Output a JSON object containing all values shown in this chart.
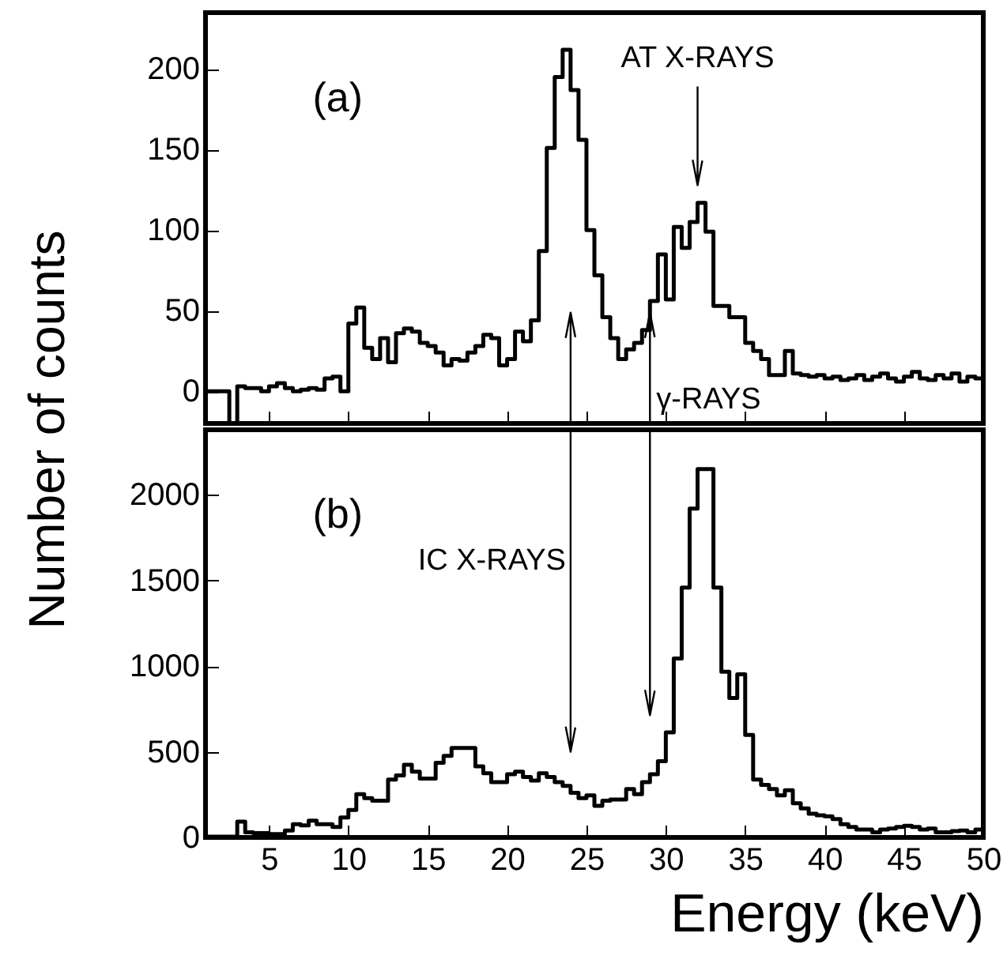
{
  "chart_data": [
    {
      "type": "histogram",
      "ylabel": "Number of counts",
      "tick_labels": "y",
      "annotations": [
        "(a)"
      ],
      "ref_lines": [
        {
          "axis": "x",
          "value": 32,
          "label": "AT X-RAYS"
        },
        {
          "axis": "x",
          "value": 29,
          "label": "γ-RAYS"
        },
        {
          "axis": "x",
          "value": 24
        }
      ],
      "bins": [
        1,
        1.5,
        2,
        2.5,
        3,
        3.5,
        4,
        4.5,
        5,
        5.5,
        6,
        6.5,
        7,
        7.5,
        8,
        8.5,
        9,
        9.5,
        10,
        10.5,
        11,
        11.5,
        12,
        12.5,
        13,
        13.5,
        14,
        14.5,
        15,
        15.5,
        16,
        16.5,
        17,
        17.5,
        18,
        18.5,
        19,
        19.5,
        20,
        20.5,
        21,
        21.5,
        22,
        22.5,
        23,
        23.5,
        24,
        24.5,
        25,
        25.5,
        26,
        26.5,
        27,
        27.5,
        28,
        28.5,
        29,
        29.5,
        30,
        30.5,
        31,
        31.5,
        32,
        32.5,
        33,
        33.5,
        34,
        34.5,
        35,
        35.5,
        36,
        36.5,
        37,
        37.5,
        38,
        38.5,
        39,
        39.5,
        40,
        40.5,
        41,
        41.5,
        42,
        42.5,
        43,
        43.5,
        44,
        44.5,
        45,
        45.5,
        46,
        46.5,
        47,
        47.5,
        48,
        48.5,
        49,
        49.5,
        50
      ],
      "values": [
        0,
        0,
        0,
        -20,
        3,
        2,
        2,
        0,
        3,
        5,
        2,
        0,
        1,
        2,
        1,
        8,
        9,
        0,
        42,
        52,
        27,
        20,
        33,
        18,
        36,
        39,
        37,
        30,
        28,
        24,
        16,
        20,
        19,
        24,
        28,
        35,
        33,
        16,
        20,
        37,
        31,
        44,
        87,
        151,
        195,
        212,
        187,
        156,
        100,
        72,
        46,
        33,
        20,
        26,
        30,
        38,
        56,
        85,
        57,
        102,
        89,
        105,
        117,
        99,
        53,
        53,
        46,
        46,
        30,
        25,
        20,
        10,
        10,
        25,
        11,
        10,
        9,
        10,
        8,
        9,
        7,
        8,
        10,
        7,
        9,
        11,
        8,
        6,
        9,
        12,
        8,
        7,
        10,
        8,
        11,
        6,
        9,
        8
      ],
      "xlim": [
        1,
        50
      ],
      "xticks": [
        5,
        10,
        15,
        20,
        25,
        30,
        35,
        40,
        45,
        50
      ],
      "ylim": [
        -20,
        235
      ],
      "yticks": [
        0,
        50,
        100,
        150,
        200
      ]
    },
    {
      "type": "histogram",
      "xlabel": "Energy (keV)",
      "annotations": [
        "(b)"
      ],
      "ref_lines": [
        {
          "axis": "x",
          "value": 24,
          "label": "IC X-RAYS"
        },
        {
          "axis": "x",
          "value": 29
        }
      ],
      "bins": [
        1,
        1.5,
        2,
        2.5,
        3,
        3.5,
        4,
        4.5,
        5,
        5.5,
        6,
        6.5,
        7,
        7.5,
        8,
        8.5,
        9,
        9.5,
        10,
        10.5,
        11,
        11.5,
        12,
        12.5,
        13,
        13.5,
        14,
        14.5,
        15,
        15.5,
        16,
        16.5,
        17,
        17.5,
        18,
        18.5,
        19,
        19.5,
        20,
        20.5,
        21,
        21.5,
        22,
        22.5,
        23,
        23.5,
        24,
        24.5,
        25,
        25.5,
        26,
        26.5,
        27,
        27.5,
        28,
        28.5,
        29,
        29.5,
        30,
        30.5,
        31,
        31.5,
        32,
        32.5,
        33,
        33.5,
        34,
        34.5,
        35,
        35.5,
        36,
        36.5,
        37,
        37.5,
        38,
        38.5,
        39,
        39.5,
        40,
        40.5,
        41,
        41.5,
        42,
        42.5,
        43,
        43.5,
        44,
        44.5,
        45,
        45.5,
        46,
        46.5,
        47,
        47.5,
        48,
        48.5,
        49,
        49.5,
        50
      ],
      "values": [
        5,
        5,
        5,
        5,
        92,
        30,
        25,
        25,
        20,
        20,
        40,
        77,
        70,
        98,
        77,
        77,
        61,
        117,
        160,
        252,
        230,
        215,
        215,
        338,
        362,
        424,
        384,
        344,
        344,
        436,
        476,
        522,
        522,
        522,
        415,
        375,
        323,
        323,
        369,
        384,
        353,
        332,
        375,
        353,
        323,
        301,
        261,
        230,
        246,
        184,
        215,
        221,
        221,
        283,
        252,
        323,
        369,
        445,
        614,
        1045,
        1459,
        1920,
        2150,
        2150,
        1459,
        968,
        814,
        952,
        599,
        338,
        307,
        283,
        246,
        276,
        200,
        169,
        138,
        129,
        123,
        107,
        77,
        61,
        46,
        46,
        30,
        46,
        52,
        61,
        68,
        61,
        46,
        52,
        30,
        30,
        37,
        40,
        30,
        46
      ],
      "xlim": [
        1,
        50
      ],
      "xticks": [
        5,
        10,
        15,
        20,
        25,
        30,
        35,
        40,
        45,
        50
      ],
      "ylim": [
        0,
        2380
      ],
      "yticks": [
        0,
        500,
        1000,
        1500,
        2000
      ]
    }
  ]
}
